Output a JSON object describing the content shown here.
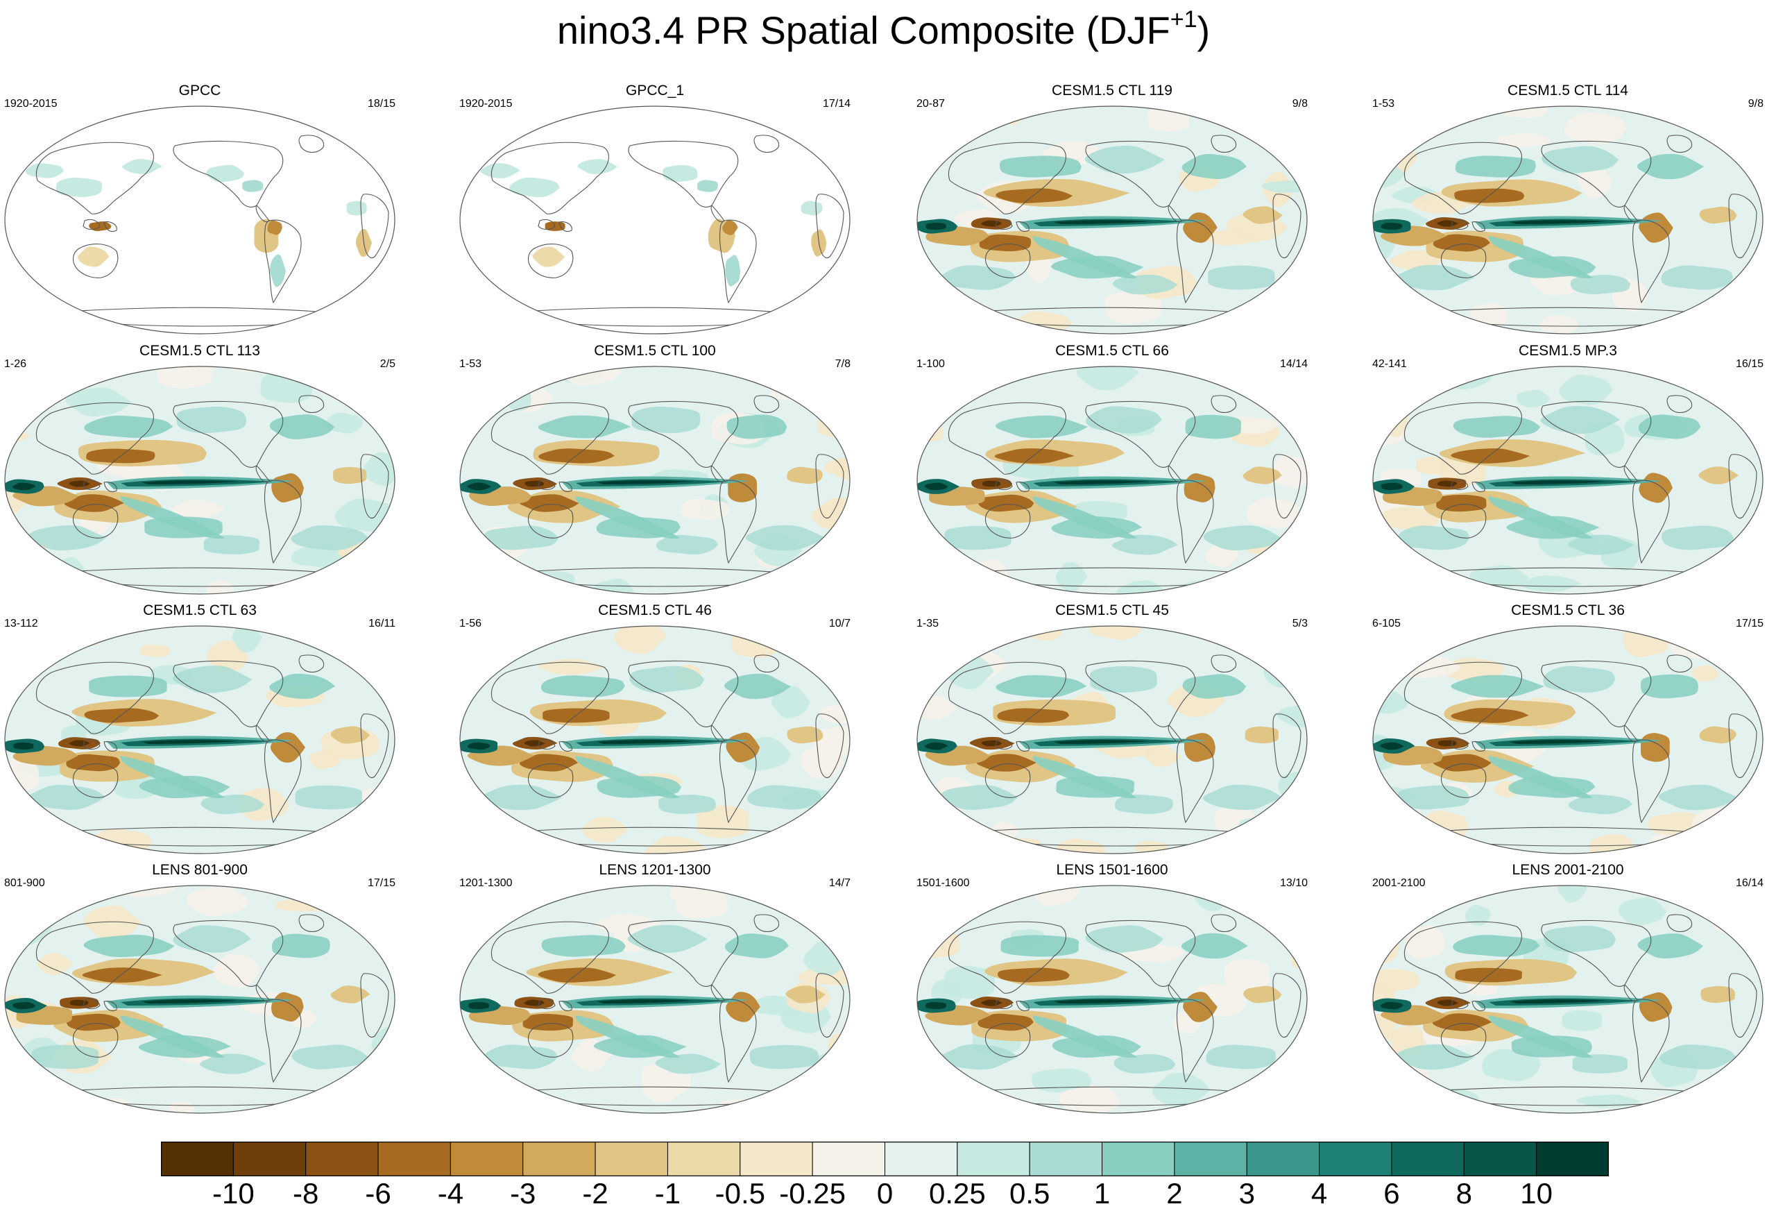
{
  "title": {
    "text": "nino3.4 PR Spatial Composite (DJF",
    "superscript": "+1",
    "closing": ")"
  },
  "chart_data": {
    "type": "heatmap",
    "description_layout": "4x4 grid of global maps",
    "panels": [
      {
        "title": "GPCC",
        "period": "1920-2015",
        "count": "18/15",
        "kind": "obs"
      },
      {
        "title": "GPCC_1",
        "period": "1920-2015",
        "count": "17/14",
        "kind": "obs"
      },
      {
        "title": "CESM1.5 CTL 119",
        "period": "20-87",
        "count": "9/8",
        "kind": "model"
      },
      {
        "title": "CESM1.5 CTL 114",
        "period": "1-53",
        "count": "9/8",
        "kind": "model"
      },
      {
        "title": "CESM1.5 CTL 113",
        "period": "1-26",
        "count": "2/5",
        "kind": "model"
      },
      {
        "title": "CESM1.5 CTL 100",
        "period": "1-53",
        "count": "7/8",
        "kind": "model"
      },
      {
        "title": "CESM1.5 CTL 66",
        "period": "1-100",
        "count": "14/14",
        "kind": "model"
      },
      {
        "title": "CESM1.5 MP.3",
        "period": "42-141",
        "count": "16/15",
        "kind": "model"
      },
      {
        "title": "CESM1.5 CTL 63",
        "period": "13-112",
        "count": "16/11",
        "kind": "model"
      },
      {
        "title": "CESM1.5 CTL 46",
        "period": "1-56",
        "count": "10/7",
        "kind": "model"
      },
      {
        "title": "CESM1.5 CTL 45",
        "period": "1-35",
        "count": "5/3",
        "kind": "model"
      },
      {
        "title": "CESM1.5 CTL 36",
        "period": "6-105",
        "count": "17/15",
        "kind": "model"
      },
      {
        "title": "LENS 801-900",
        "period": "801-900",
        "count": "17/15",
        "kind": "model"
      },
      {
        "title": "LENS 1201-1300",
        "period": "1201-1300",
        "count": "14/7",
        "kind": "model"
      },
      {
        "title": "LENS 1501-1600",
        "period": "1501-1600",
        "count": "13/10",
        "kind": "model"
      },
      {
        "title": "LENS 2001-2100",
        "period": "2001-2100",
        "count": "16/14",
        "kind": "model"
      }
    ],
    "colorbar": {
      "labels": [
        "-10",
        "-8",
        "-6",
        "-4",
        "-3",
        "-2",
        "-1",
        "-0.5",
        "-0.25",
        "0",
        "0.25",
        "0.5",
        "1",
        "2",
        "3",
        "4",
        "6",
        "8",
        "10"
      ],
      "colors": [
        "#543005",
        "#6e3f0b",
        "#8c5114",
        "#a66b21",
        "#bf8a3a",
        "#d2aa5f",
        "#e1c585",
        "#ecdaa8",
        "#f5e8c9",
        "#f5f2ea",
        "#e4f2ef",
        "#c6e9e2",
        "#a9ddd4",
        "#86cfc1",
        "#5cb3a5",
        "#3b968b",
        "#1f8075",
        "#0f6a5d",
        "#06574a",
        "#003c30"
      ]
    },
    "legend": "bottom"
  }
}
